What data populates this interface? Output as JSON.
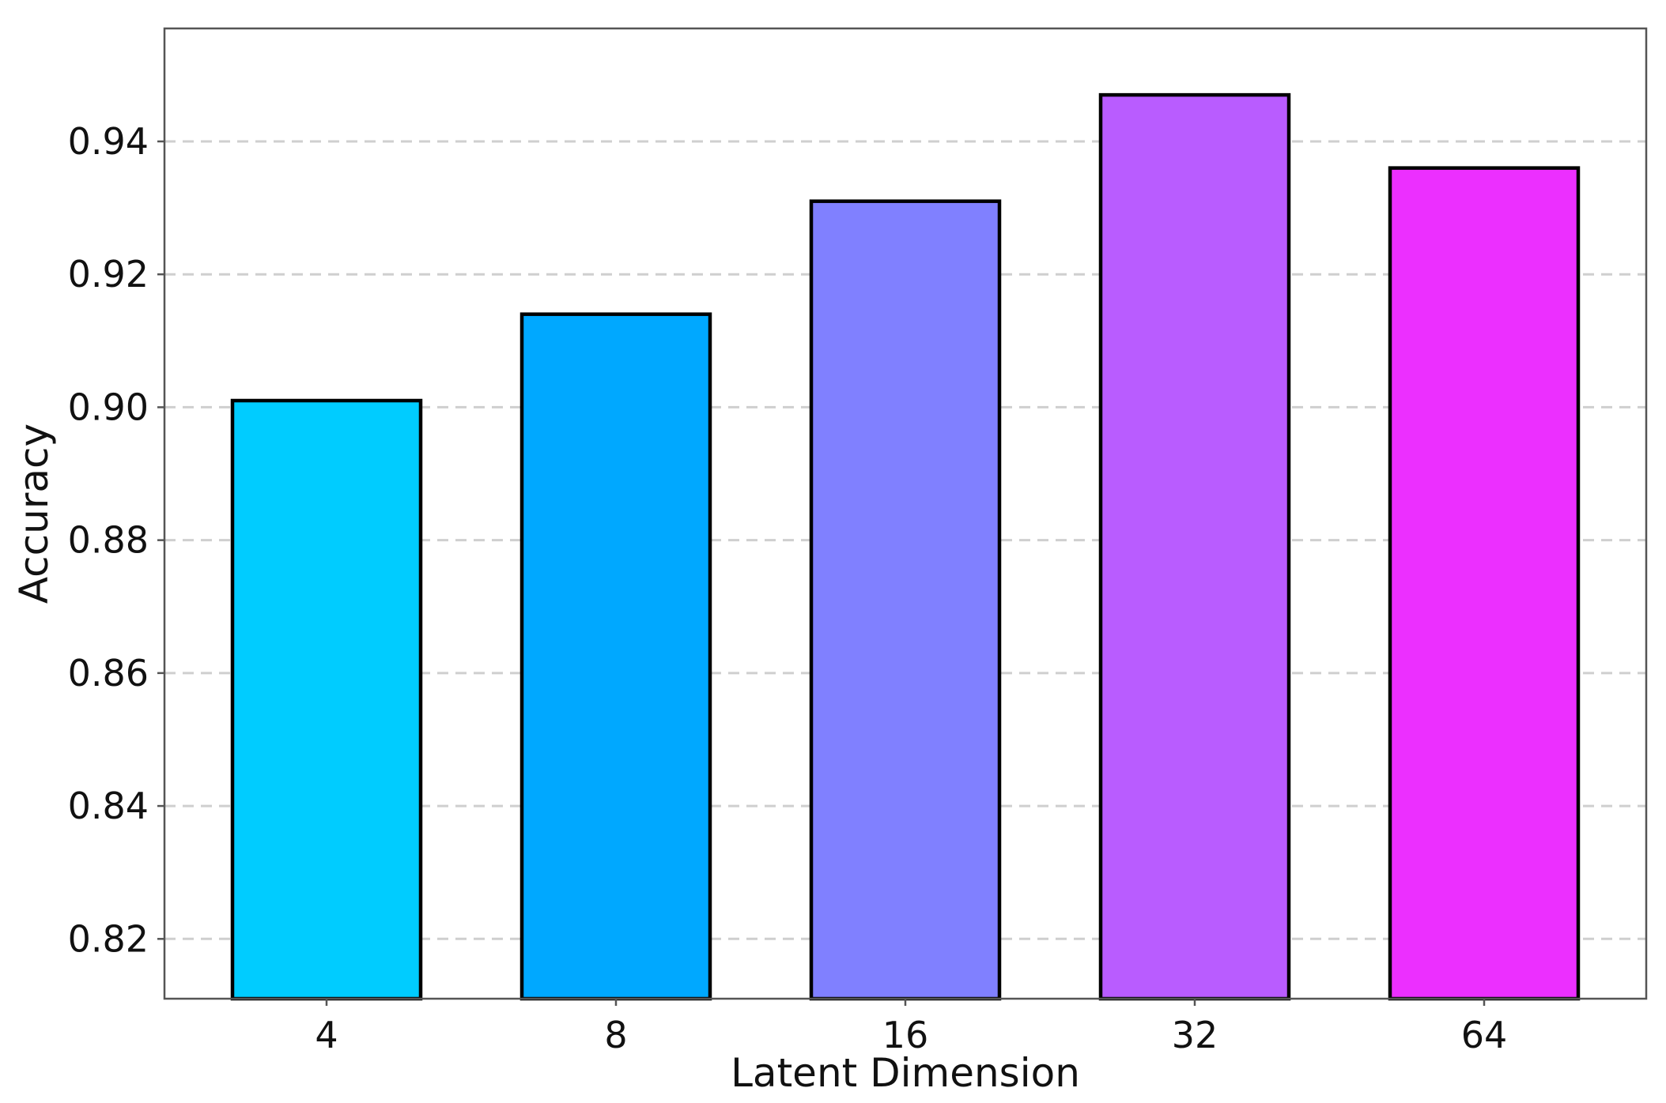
{
  "chart_data": {
    "type": "bar",
    "categories": [
      "4",
      "8",
      "16",
      "32",
      "64"
    ],
    "values": [
      0.901,
      0.914,
      0.931,
      0.947,
      0.936
    ],
    "colors": [
      "#00CCFF",
      "#00A8FF",
      "#8080FF",
      "#B95CFF",
      "#EC2FFF"
    ],
    "title": "",
    "xlabel": "Latent Dimension",
    "ylabel": "Accuracy",
    "ylim": [
      0.811,
      0.957
    ],
    "yticks": [
      0.82,
      0.84,
      0.86,
      0.88,
      0.9,
      0.92,
      0.94
    ],
    "ytick_labels": [
      "0.82",
      "0.84",
      "0.86",
      "0.88",
      "0.90",
      "0.92",
      "0.94"
    ],
    "grid": "y-dashed",
    "legend": "none"
  }
}
